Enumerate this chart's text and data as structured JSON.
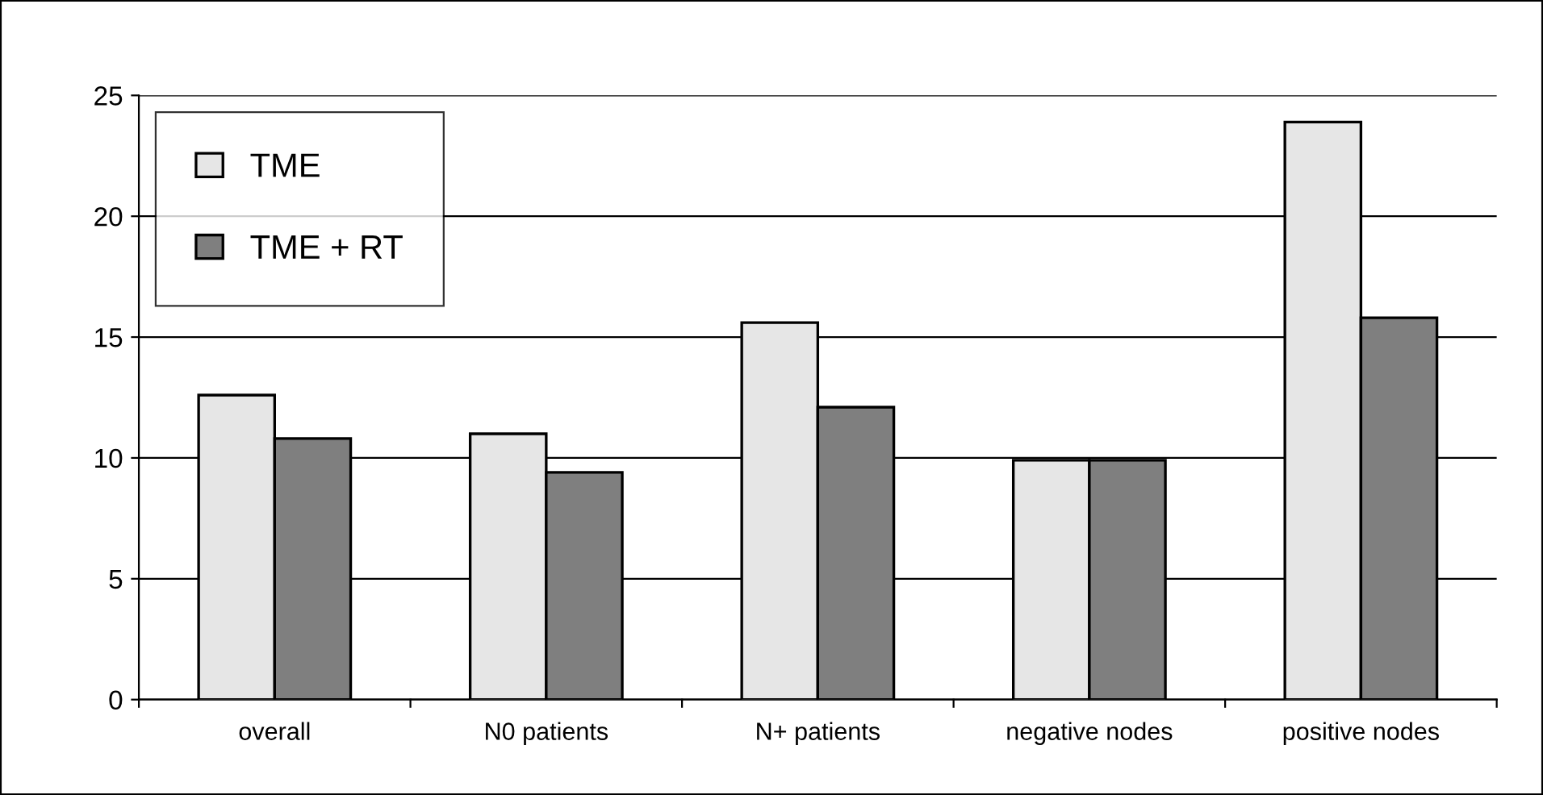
{
  "chart_data": {
    "type": "bar",
    "categories": [
      "overall",
      "N0 patients",
      "N+ patients",
      "negative nodes",
      "positive nodes"
    ],
    "series": [
      {
        "name": "TME",
        "color": "#e6e6e6",
        "values": [
          12.6,
          11.0,
          15.6,
          9.9,
          23.9
        ]
      },
      {
        "name": "TME + RT",
        "color": "#7f7f7f",
        "values": [
          10.8,
          9.4,
          12.1,
          9.9,
          15.8
        ]
      }
    ],
    "ylim": [
      0,
      25
    ],
    "yticks": [
      0,
      5,
      10,
      15,
      20,
      25
    ],
    "grid": "y",
    "legend": "top left"
  }
}
